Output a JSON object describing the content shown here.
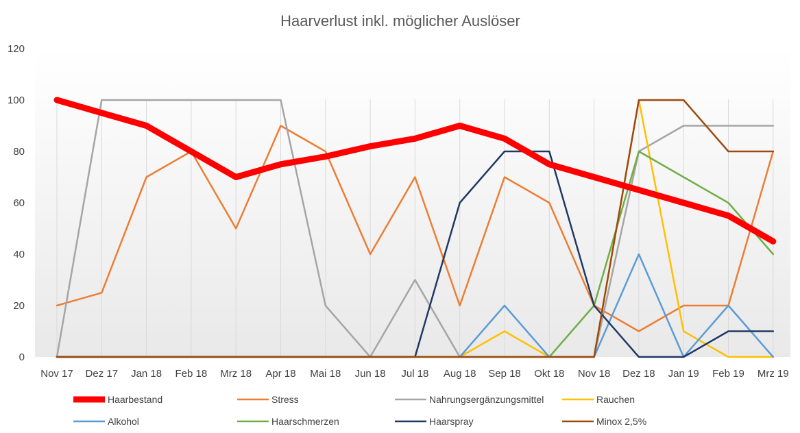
{
  "chart_data": {
    "type": "line",
    "title": "Haarverlust inkl. möglicher Auslöser",
    "xlabel": "",
    "ylabel": "",
    "ylim": [
      0,
      120
    ],
    "yticks": [
      0,
      20,
      40,
      60,
      80,
      100,
      120
    ],
    "categories": [
      "Nov 17",
      "Dez 17",
      "Jan 18",
      "Feb 18",
      "Mrz 18",
      "Apr 18",
      "Mai 18",
      "Jun 18",
      "Jul 18",
      "Aug 18",
      "Sep 18",
      "Okt 18",
      "Nov 18",
      "Dez 18",
      "Jan 19",
      "Feb 19",
      "Mrz 19"
    ],
    "legend_position": "bottom",
    "series": [
      {
        "name": "Haarbestand",
        "color": "#ff0000",
        "width": "thick",
        "values": [
          100,
          95,
          90,
          80,
          70,
          75,
          78,
          82,
          85,
          90,
          85,
          75,
          70,
          65,
          60,
          55,
          45
        ]
      },
      {
        "name": "Stress",
        "color": "#ed7d31",
        "width": "normal",
        "values": [
          20,
          25,
          70,
          80,
          50,
          90,
          80,
          40,
          70,
          20,
          70,
          60,
          20,
          10,
          20,
          20,
          80
        ]
      },
      {
        "name": "Nahrungsergänzungsmittel",
        "color": "#a5a5a5",
        "width": "normal",
        "values": [
          0,
          100,
          100,
          100,
          100,
          100,
          20,
          0,
          30,
          0,
          0,
          0,
          0,
          80,
          90,
          90,
          90
        ]
      },
      {
        "name": "Rauchen",
        "color": "#ffc000",
        "width": "normal",
        "values": [
          0,
          0,
          0,
          0,
          0,
          0,
          0,
          0,
          0,
          0,
          10,
          0,
          0,
          100,
          10,
          0,
          0
        ]
      },
      {
        "name": "Alkohol",
        "color": "#5b9bd5",
        "width": "normal",
        "values": [
          0,
          0,
          0,
          0,
          0,
          0,
          0,
          0,
          0,
          0,
          20,
          0,
          0,
          40,
          0,
          20,
          0
        ]
      },
      {
        "name": "Haarschmerzen",
        "color": "#70ad47",
        "width": "normal",
        "values": [
          0,
          0,
          0,
          0,
          0,
          0,
          0,
          0,
          0,
          0,
          0,
          0,
          20,
          80,
          70,
          60,
          40
        ]
      },
      {
        "name": "Haarspray",
        "color": "#203864",
        "width": "normal",
        "values": [
          0,
          0,
          0,
          0,
          0,
          0,
          0,
          0,
          0,
          60,
          80,
          80,
          20,
          0,
          0,
          10,
          10
        ]
      },
      {
        "name": "Minox 2,5%",
        "color": "#9c4a0f",
        "width": "normal",
        "values": [
          0,
          0,
          0,
          0,
          0,
          0,
          0,
          0,
          0,
          0,
          0,
          0,
          0,
          100,
          100,
          80,
          80
        ]
      }
    ]
  }
}
